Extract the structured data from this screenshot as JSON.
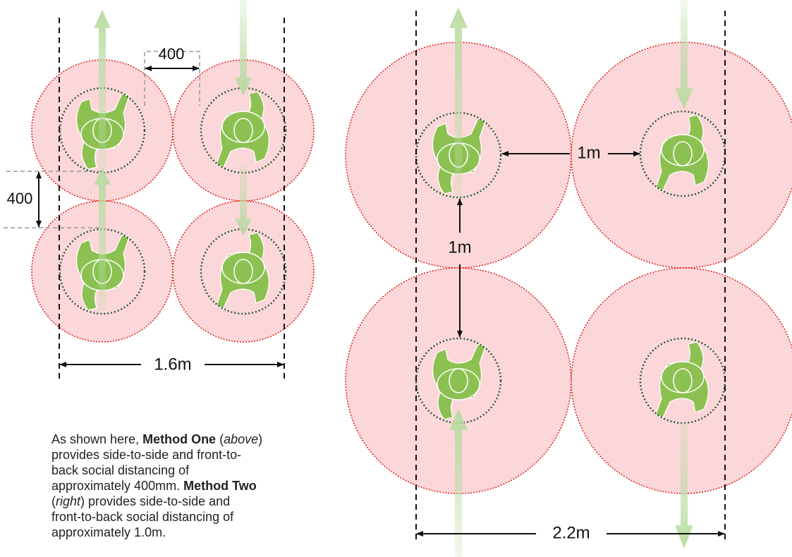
{
  "labels": {
    "left_top_gap": "400",
    "left_side_gap": "400",
    "left_width": "1.6m",
    "right_side_gap": "1m",
    "right_front_gap": "1m",
    "right_width": "2.2m"
  },
  "paragraph": [
    "As shown here, ",
    "Method One",
    " (",
    "above",
    ") provides side-to-side and front-to-back social distancing of approximately 400mm. ",
    "Method Two",
    " (",
    "right",
    ") provides side-to-side and front-to-back social distancing of approximately 1.0m."
  ]
}
